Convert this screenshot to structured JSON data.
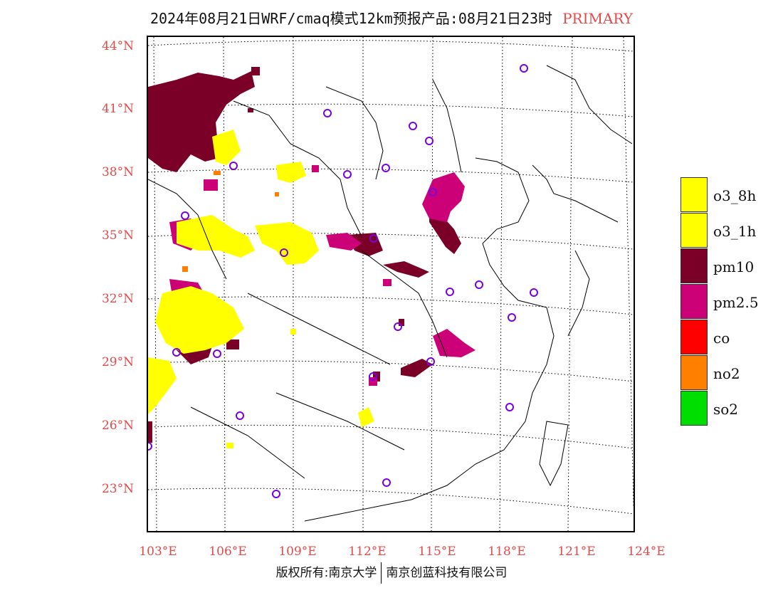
{
  "title": {
    "text": "2024年08月21日WRF/cmaq模式12km预报产品:08月21日23时",
    "tag": "PRIMARY",
    "tag_color": "#e34a4a"
  },
  "axes": {
    "latitudes": [
      "44°N",
      "41°N",
      "38°N",
      "35°N",
      "32°N",
      "29°N",
      "26°N",
      "23°N"
    ],
    "longitudes": [
      "103°E",
      "106°E",
      "109°E",
      "112°E",
      "115°E",
      "118°E",
      "121°E",
      "124°E"
    ],
    "label_color": "#e34a4a"
  },
  "legend": {
    "items": [
      {
        "label": "o3_8h",
        "color": "#ffff00"
      },
      {
        "label": "o3_1h",
        "color": "#ffff00"
      },
      {
        "label": "pm10",
        "color": "#7b0028"
      },
      {
        "label": "pm2.5",
        "color": "#cc0077"
      },
      {
        "label": "co",
        "color": "#ff0000"
      },
      {
        "label": "no2",
        "color": "#ff7f00"
      },
      {
        "label": "so2",
        "color": "#00dd00"
      }
    ]
  },
  "footer": {
    "left": "版权所有:南京大学",
    "right": "南京创蓝科技有限公司"
  }
}
